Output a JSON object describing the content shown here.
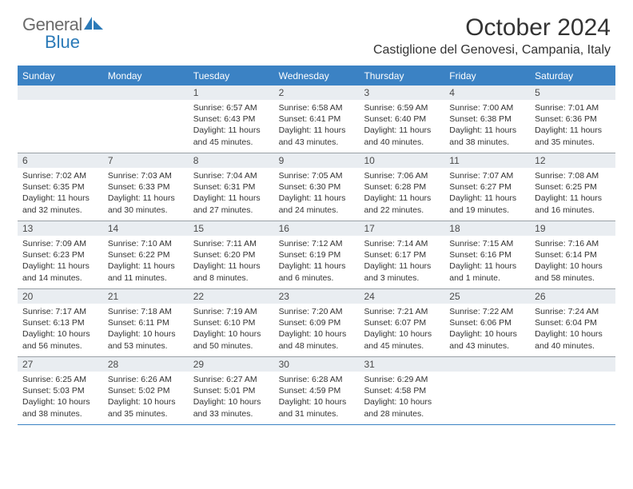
{
  "logo": {
    "line1": "General",
    "line2": "Blue",
    "gray_color": "#6b6b6b",
    "blue_color": "#2b7ab8",
    "shape_color": "#2b7ab8"
  },
  "header": {
    "title": "October 2024",
    "location": "Castiglione del Genovesi, Campania, Italy"
  },
  "colors": {
    "header_bg": "#3b82c4",
    "daynum_bg": "#e9edf1",
    "row_border": "#9aa0a6",
    "text": "#333333"
  },
  "day_names": [
    "Sunday",
    "Monday",
    "Tuesday",
    "Wednesday",
    "Thursday",
    "Friday",
    "Saturday"
  ],
  "weeks": [
    [
      {
        "n": "",
        "sr": "",
        "ss": "",
        "dl": ""
      },
      {
        "n": "",
        "sr": "",
        "ss": "",
        "dl": ""
      },
      {
        "n": "1",
        "sr": "Sunrise: 6:57 AM",
        "ss": "Sunset: 6:43 PM",
        "dl": "Daylight: 11 hours and 45 minutes."
      },
      {
        "n": "2",
        "sr": "Sunrise: 6:58 AM",
        "ss": "Sunset: 6:41 PM",
        "dl": "Daylight: 11 hours and 43 minutes."
      },
      {
        "n": "3",
        "sr": "Sunrise: 6:59 AM",
        "ss": "Sunset: 6:40 PM",
        "dl": "Daylight: 11 hours and 40 minutes."
      },
      {
        "n": "4",
        "sr": "Sunrise: 7:00 AM",
        "ss": "Sunset: 6:38 PM",
        "dl": "Daylight: 11 hours and 38 minutes."
      },
      {
        "n": "5",
        "sr": "Sunrise: 7:01 AM",
        "ss": "Sunset: 6:36 PM",
        "dl": "Daylight: 11 hours and 35 minutes."
      }
    ],
    [
      {
        "n": "6",
        "sr": "Sunrise: 7:02 AM",
        "ss": "Sunset: 6:35 PM",
        "dl": "Daylight: 11 hours and 32 minutes."
      },
      {
        "n": "7",
        "sr": "Sunrise: 7:03 AM",
        "ss": "Sunset: 6:33 PM",
        "dl": "Daylight: 11 hours and 30 minutes."
      },
      {
        "n": "8",
        "sr": "Sunrise: 7:04 AM",
        "ss": "Sunset: 6:31 PM",
        "dl": "Daylight: 11 hours and 27 minutes."
      },
      {
        "n": "9",
        "sr": "Sunrise: 7:05 AM",
        "ss": "Sunset: 6:30 PM",
        "dl": "Daylight: 11 hours and 24 minutes."
      },
      {
        "n": "10",
        "sr": "Sunrise: 7:06 AM",
        "ss": "Sunset: 6:28 PM",
        "dl": "Daylight: 11 hours and 22 minutes."
      },
      {
        "n": "11",
        "sr": "Sunrise: 7:07 AM",
        "ss": "Sunset: 6:27 PM",
        "dl": "Daylight: 11 hours and 19 minutes."
      },
      {
        "n": "12",
        "sr": "Sunrise: 7:08 AM",
        "ss": "Sunset: 6:25 PM",
        "dl": "Daylight: 11 hours and 16 minutes."
      }
    ],
    [
      {
        "n": "13",
        "sr": "Sunrise: 7:09 AM",
        "ss": "Sunset: 6:23 PM",
        "dl": "Daylight: 11 hours and 14 minutes."
      },
      {
        "n": "14",
        "sr": "Sunrise: 7:10 AM",
        "ss": "Sunset: 6:22 PM",
        "dl": "Daylight: 11 hours and 11 minutes."
      },
      {
        "n": "15",
        "sr": "Sunrise: 7:11 AM",
        "ss": "Sunset: 6:20 PM",
        "dl": "Daylight: 11 hours and 8 minutes."
      },
      {
        "n": "16",
        "sr": "Sunrise: 7:12 AM",
        "ss": "Sunset: 6:19 PM",
        "dl": "Daylight: 11 hours and 6 minutes."
      },
      {
        "n": "17",
        "sr": "Sunrise: 7:14 AM",
        "ss": "Sunset: 6:17 PM",
        "dl": "Daylight: 11 hours and 3 minutes."
      },
      {
        "n": "18",
        "sr": "Sunrise: 7:15 AM",
        "ss": "Sunset: 6:16 PM",
        "dl": "Daylight: 11 hours and 1 minute."
      },
      {
        "n": "19",
        "sr": "Sunrise: 7:16 AM",
        "ss": "Sunset: 6:14 PM",
        "dl": "Daylight: 10 hours and 58 minutes."
      }
    ],
    [
      {
        "n": "20",
        "sr": "Sunrise: 7:17 AM",
        "ss": "Sunset: 6:13 PM",
        "dl": "Daylight: 10 hours and 56 minutes."
      },
      {
        "n": "21",
        "sr": "Sunrise: 7:18 AM",
        "ss": "Sunset: 6:11 PM",
        "dl": "Daylight: 10 hours and 53 minutes."
      },
      {
        "n": "22",
        "sr": "Sunrise: 7:19 AM",
        "ss": "Sunset: 6:10 PM",
        "dl": "Daylight: 10 hours and 50 minutes."
      },
      {
        "n": "23",
        "sr": "Sunrise: 7:20 AM",
        "ss": "Sunset: 6:09 PM",
        "dl": "Daylight: 10 hours and 48 minutes."
      },
      {
        "n": "24",
        "sr": "Sunrise: 7:21 AM",
        "ss": "Sunset: 6:07 PM",
        "dl": "Daylight: 10 hours and 45 minutes."
      },
      {
        "n": "25",
        "sr": "Sunrise: 7:22 AM",
        "ss": "Sunset: 6:06 PM",
        "dl": "Daylight: 10 hours and 43 minutes."
      },
      {
        "n": "26",
        "sr": "Sunrise: 7:24 AM",
        "ss": "Sunset: 6:04 PM",
        "dl": "Daylight: 10 hours and 40 minutes."
      }
    ],
    [
      {
        "n": "27",
        "sr": "Sunrise: 6:25 AM",
        "ss": "Sunset: 5:03 PM",
        "dl": "Daylight: 10 hours and 38 minutes."
      },
      {
        "n": "28",
        "sr": "Sunrise: 6:26 AM",
        "ss": "Sunset: 5:02 PM",
        "dl": "Daylight: 10 hours and 35 minutes."
      },
      {
        "n": "29",
        "sr": "Sunrise: 6:27 AM",
        "ss": "Sunset: 5:01 PM",
        "dl": "Daylight: 10 hours and 33 minutes."
      },
      {
        "n": "30",
        "sr": "Sunrise: 6:28 AM",
        "ss": "Sunset: 4:59 PM",
        "dl": "Daylight: 10 hours and 31 minutes."
      },
      {
        "n": "31",
        "sr": "Sunrise: 6:29 AM",
        "ss": "Sunset: 4:58 PM",
        "dl": "Daylight: 10 hours and 28 minutes."
      },
      {
        "n": "",
        "sr": "",
        "ss": "",
        "dl": ""
      },
      {
        "n": "",
        "sr": "",
        "ss": "",
        "dl": ""
      }
    ]
  ]
}
